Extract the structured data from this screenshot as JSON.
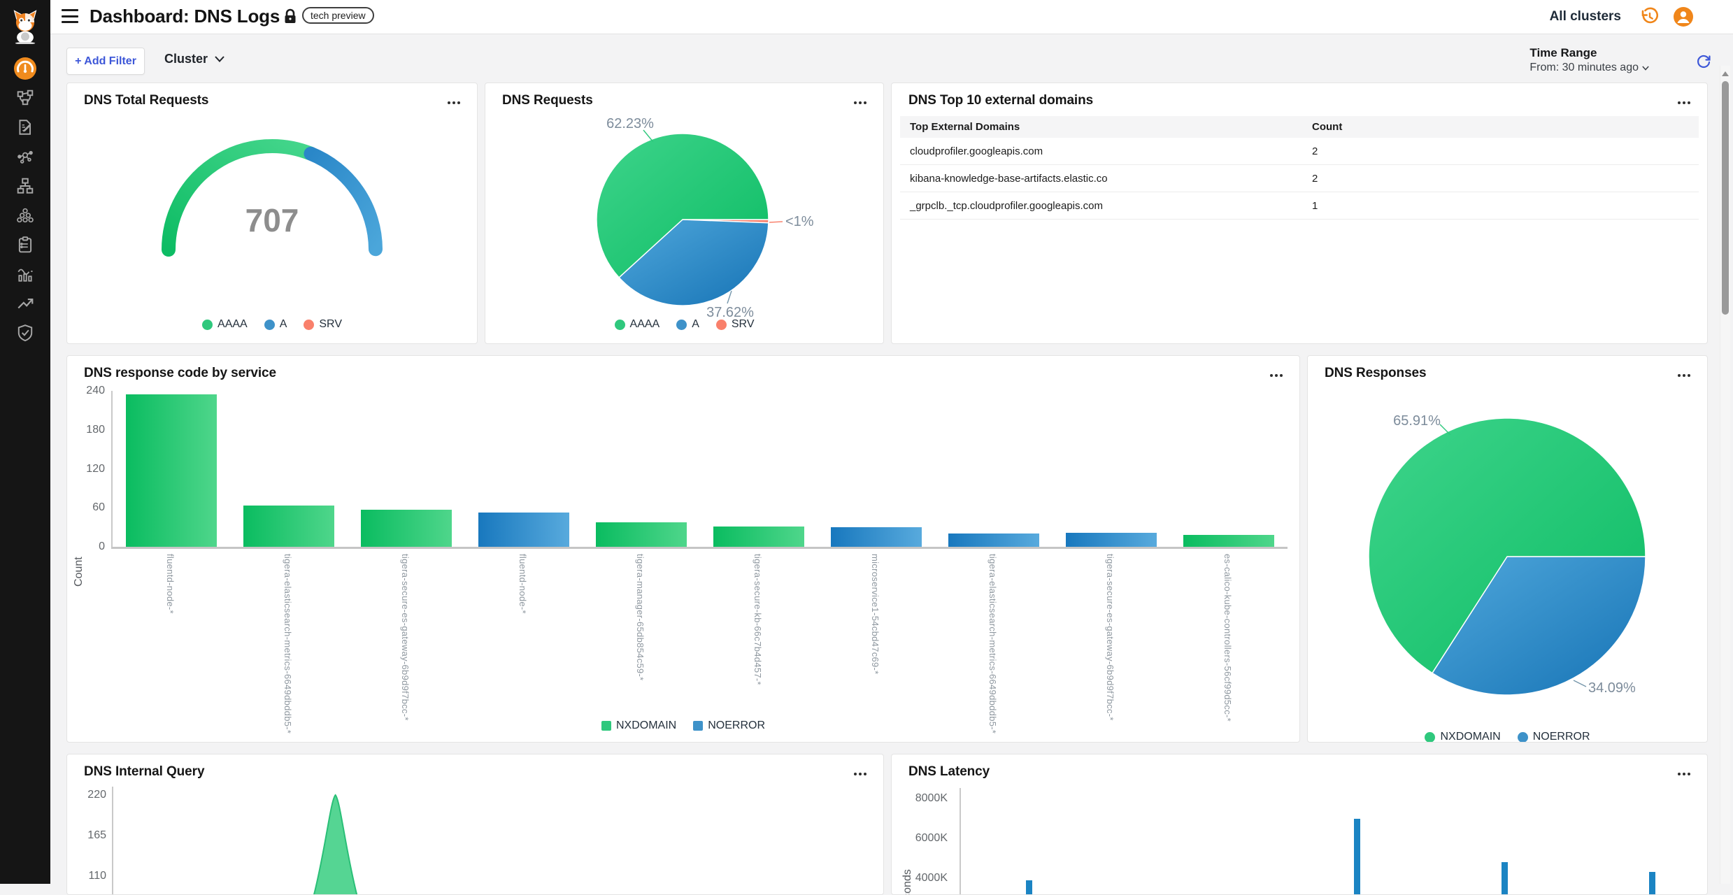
{
  "colors": {
    "green": "#2fc87d",
    "blue": "#3e92c9",
    "salmon": "#f9806b",
    "accent_blue": "#3d57d8",
    "orange": "#f0861a"
  },
  "header": {
    "title": "Dashboard: DNS Logs",
    "badge": "tech preview",
    "cluster_scope": "All clusters"
  },
  "sidebar": {
    "items": [
      {
        "icon": "tigera-cat-logo",
        "active": false
      },
      {
        "icon": "dashboard-gauge-icon",
        "active": true
      },
      {
        "icon": "network-topology-icon",
        "active": false
      },
      {
        "icon": "policy-document-icon",
        "active": false
      },
      {
        "icon": "service-graph-icon",
        "active": false
      },
      {
        "icon": "network-sets-icon",
        "active": false
      },
      {
        "icon": "clusters-icon",
        "active": false
      },
      {
        "icon": "compliance-clipboard-icon",
        "active": false
      },
      {
        "icon": "logs-chart-icon",
        "active": false
      },
      {
        "icon": "trend-arrow-icon",
        "active": false
      },
      {
        "icon": "security-shield-icon",
        "active": false
      }
    ]
  },
  "filter_bar": {
    "add_filter_label": "+ Add Filter",
    "cluster_label": "Cluster",
    "time_range_title": "Time Range",
    "time_range_value": "From: 30 minutes ago"
  },
  "chart_data": [
    {
      "id": "total_requests",
      "type": "gauge",
      "title": "DNS Total Requests",
      "value": "707",
      "series": [
        {
          "name": "AAAA",
          "pct": 62.23,
          "color": "green"
        },
        {
          "name": "A",
          "pct": 37.62,
          "color": "blue"
        },
        {
          "name": "SRV",
          "pct": 0.15,
          "color": "salmon"
        }
      ],
      "legend": [
        {
          "label": "AAAA",
          "color": "green"
        },
        {
          "label": "A",
          "color": "blue"
        },
        {
          "label": "SRV",
          "color": "salmon"
        }
      ]
    },
    {
      "id": "requests_pie",
      "type": "pie",
      "title": "DNS Requests",
      "slices": [
        {
          "name": "SRV",
          "pct": 0.15,
          "label": "<1%",
          "color": "salmon"
        },
        {
          "name": "A",
          "pct": 37.62,
          "label": "37.62%",
          "color": "blue"
        },
        {
          "name": "AAAA",
          "pct": 62.23,
          "label": "62.23%",
          "color": "green"
        }
      ],
      "legend": [
        {
          "label": "AAAA",
          "color": "green"
        },
        {
          "label": "A",
          "color": "blue"
        },
        {
          "label": "SRV",
          "color": "salmon"
        }
      ]
    },
    {
      "id": "top_domains",
      "type": "table",
      "title": "DNS Top 10 external domains",
      "columns": [
        "Top External Domains",
        "Count"
      ],
      "rows": [
        [
          "cloudprofiler.googleapis.com",
          "2"
        ],
        [
          "kibana-knowledge-base-artifacts.elastic.co",
          "2"
        ],
        [
          "_grpclb._tcp.cloudprofiler.googleapis.com",
          "1"
        ]
      ]
    },
    {
      "id": "response_codes",
      "type": "bar",
      "title": "DNS response code by service",
      "ylabel": "Count",
      "ylim": [
        0,
        240
      ],
      "yticks": [
        0,
        60,
        120,
        180,
        240
      ],
      "categories": [
        "fluentd-node-*",
        "tigera-elasticsearch-metrics-6649dbddb5-*",
        "tigera-secure-es-gateway-6b9d9f7bcc-*",
        "fluentd-node-*",
        "tigera-manager-65db854c59-*",
        "tigera-secure-kb-66c7b4d457-*",
        "microservice1-54cbd47c69-*",
        "tigera-elasticsearch-metrics-6649dbddb5-*",
        "tigera-secure-es-gateway-6b9d9f7bcc-*",
        "es-calico-kube-controllers-56cf99d5cc-*"
      ],
      "values": [
        235,
        64,
        57,
        53,
        38,
        31,
        30,
        20,
        21,
        18
      ],
      "bar_series": [
        "NXDOMAIN",
        "NXDOMAIN",
        "NXDOMAIN",
        "NOERROR",
        "NXDOMAIN",
        "NXDOMAIN",
        "NOERROR",
        "NOERROR",
        "NOERROR",
        "NXDOMAIN"
      ],
      "legend": [
        {
          "label": "NXDOMAIN",
          "color": "green"
        },
        {
          "label": "NOERROR",
          "color": "blue"
        }
      ]
    },
    {
      "id": "responses_pie",
      "type": "pie",
      "title": "DNS Responses",
      "slices": [
        {
          "name": "NOERROR",
          "pct": 34.09,
          "label": "34.09%",
          "color": "blue"
        },
        {
          "name": "NXDOMAIN",
          "pct": 65.91,
          "label": "65.91%",
          "color": "green"
        }
      ],
      "legend": [
        {
          "label": "NXDOMAIN",
          "color": "green"
        },
        {
          "label": "NOERROR",
          "color": "blue"
        }
      ]
    },
    {
      "id": "internal_query",
      "type": "area",
      "title": "DNS Internal Query",
      "yticks_visible": [
        220,
        165,
        110
      ],
      "series": [
        {
          "name": "query",
          "color": "green",
          "peak_value": 220,
          "peak_x_frac": 0.295
        }
      ]
    },
    {
      "id": "latency",
      "type": "bar",
      "title": "DNS Latency",
      "ylabel": "Nanoseconds",
      "yticks_visible": [
        "8000K",
        "6000K",
        "4000K"
      ],
      "bars": [
        {
          "x_frac": 0.094,
          "value_k": 3900
        },
        {
          "x_frac": 0.544,
          "value_k": 7000
        },
        {
          "x_frac": 0.747,
          "value_k": 4800
        },
        {
          "x_frac": 0.949,
          "value_k": 4300
        }
      ]
    }
  ]
}
